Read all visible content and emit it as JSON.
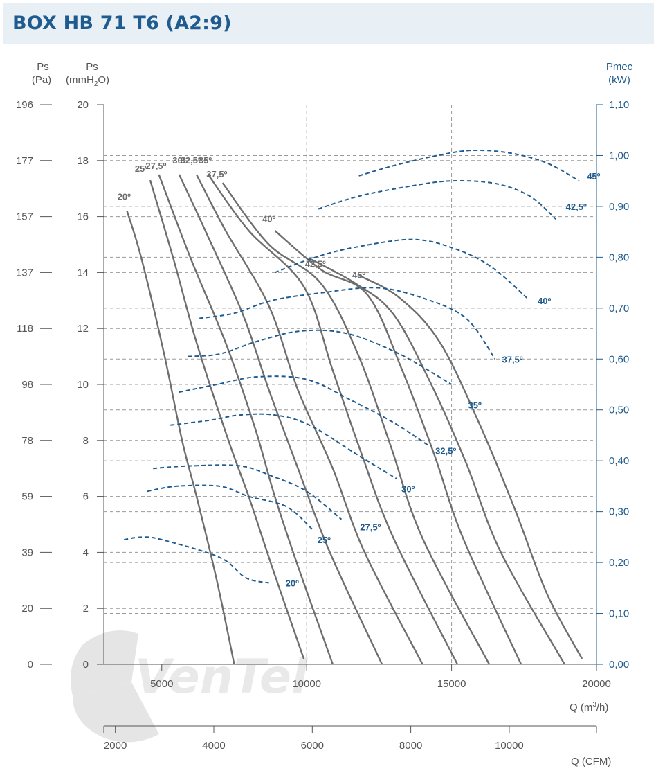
{
  "title": "BOX HB 71 T6 (A2:9)",
  "watermark": "VenTel",
  "axes": {
    "left_pa": {
      "unit_line1": "Ps",
      "unit_line2": "(Pa)",
      "ticks": [
        "196",
        "177",
        "157",
        "137",
        "118",
        "98",
        "78",
        "59",
        "39",
        "20",
        "0"
      ]
    },
    "left_mmh2o": {
      "unit_line1": "Ps",
      "unit_line2": "(mmH",
      "unit_sub": "2",
      "unit_tail": "O)",
      "ticks": [
        "20",
        "18",
        "16",
        "14",
        "12",
        "10",
        "8",
        "6",
        "4",
        "2",
        "0"
      ]
    },
    "right_kw": {
      "unit_line1": "Pmec",
      "unit_line2": "(kW)",
      "ticks": [
        "1,10",
        "1,00",
        "0,90",
        "0,80",
        "0,70",
        "0,60",
        "0,50",
        "0,40",
        "0,30",
        "0,20",
        "0,10",
        "0,00"
      ]
    },
    "x_m3h": {
      "label": "Q (m",
      "label_sup": "3",
      "label_tail": "/h)",
      "ticks": [
        "5000",
        "10000",
        "15000",
        "20000"
      ]
    },
    "x_cfm": {
      "label": "Q (CFM)",
      "ticks": [
        "2000",
        "4000",
        "6000",
        "8000",
        "10000"
      ]
    }
  },
  "colors": {
    "pressure_curve": "#6e6e6e",
    "power_curve": "#1f5b8e",
    "axis_right": "#1f5b8e",
    "title": "#1f5b8e",
    "header_bg": "#e8eff5",
    "grid": "#9a9a9a"
  },
  "chart_data": {
    "type": "line",
    "x_axis": {
      "label": "Q (m3/h)",
      "range": [
        3000,
        20000
      ],
      "secondary_label": "Q (CFM)"
    },
    "y_axis_left": {
      "label": "Ps (mmH2O)",
      "range": [
        0,
        20
      ],
      "secondary_label": "Ps (Pa)"
    },
    "y_axis_right": {
      "label": "Pmec (kW)",
      "range": [
        0,
        1.1
      ]
    },
    "pressure_series": [
      {
        "name": "20º",
        "label_at": [
          3700,
          16.6
        ],
        "points": [
          [
            3800,
            16.2
          ],
          [
            4300,
            14.5
          ],
          [
            5100,
            11.0
          ],
          [
            5700,
            8.0
          ],
          [
            6200,
            6.0
          ],
          [
            6900,
            3.0
          ],
          [
            7500,
            0
          ]
        ]
      },
      {
        "name": "25º",
        "label_at": [
          4300,
          17.6
        ],
        "points": [
          [
            4600,
            17.3
          ],
          [
            5400,
            14.5
          ],
          [
            6200,
            11.5
          ],
          [
            7300,
            8.0
          ],
          [
            8000,
            6.0
          ],
          [
            8800,
            3.5
          ],
          [
            9900,
            0.2
          ]
        ]
      },
      {
        "name": "27,5º",
        "label_at": [
          4800,
          17.7
        ],
        "points": [
          [
            4900,
            17.5
          ],
          [
            6000,
            14.5
          ],
          [
            7200,
            11.5
          ],
          [
            8200,
            8.5
          ],
          [
            8900,
            6.0
          ],
          [
            9700,
            3.5
          ],
          [
            10900,
            0
          ]
        ]
      },
      {
        "name": "30º",
        "label_at": [
          5600,
          17.9
        ],
        "points": [
          [
            5600,
            17.5
          ],
          [
            6500,
            15.5
          ],
          [
            7800,
            12.5
          ],
          [
            8700,
            9.8
          ],
          [
            9700,
            7.0
          ],
          [
            10800,
            4.0
          ],
          [
            12600,
            0
          ]
        ]
      },
      {
        "name": "32,5º",
        "label_at": [
          6000,
          17.9
        ],
        "points": [
          [
            6200,
            17.5
          ],
          [
            7200,
            15.5
          ],
          [
            8700,
            12.8
          ],
          [
            9700,
            9.8
          ],
          [
            10900,
            7.0
          ],
          [
            12000,
            4.0
          ],
          [
            14000,
            0
          ]
        ]
      },
      {
        "name": "35º",
        "label_at": [
          6500,
          17.9
        ],
        "points": [
          [
            6600,
            17.5
          ],
          [
            8000,
            15.5
          ],
          [
            9900,
            13.5
          ],
          [
            10900,
            10.5
          ],
          [
            11900,
            7.5
          ],
          [
            13000,
            4.5
          ],
          [
            15200,
            0
          ]
        ]
      },
      {
        "name": "37,5º",
        "label_at": [
          6900,
          17.4
        ],
        "points": [
          [
            7100,
            17.2
          ],
          [
            8700,
            15.0
          ],
          [
            10500,
            13.6
          ],
          [
            11800,
            11.0
          ],
          [
            12900,
            7.8
          ],
          [
            14000,
            4.5
          ],
          [
            16300,
            0
          ]
        ]
      },
      {
        "name": "40º",
        "label_at": [
          8700,
          15.8
        ],
        "points": [
          [
            8900,
            15.5
          ],
          [
            10500,
            14.1
          ],
          [
            12100,
            13.2
          ],
          [
            13300,
            10.5
          ],
          [
            14400,
            7.5
          ],
          [
            15400,
            4.5
          ],
          [
            17400,
            0
          ]
        ]
      },
      {
        "name": "42,5º",
        "label_at": [
          10300,
          14.2
        ],
        "points": [
          [
            10100,
            14.5
          ],
          [
            11700,
            13.6
          ],
          [
            13000,
            12.5
          ],
          [
            14300,
            10.0
          ],
          [
            15500,
            7.2
          ],
          [
            16700,
            4.0
          ],
          [
            18900,
            0
          ]
        ]
      },
      {
        "name": "45º",
        "label_at": [
          11800,
          13.8
        ],
        "points": [
          [
            11800,
            13.9
          ],
          [
            13200,
            13.1
          ],
          [
            14600,
            11.5
          ],
          [
            16000,
            8.5
          ],
          [
            17200,
            5.5
          ],
          [
            18300,
            2.5
          ],
          [
            19500,
            0.2
          ]
        ]
      }
    ],
    "power_series": [
      {
        "name": "20º",
        "label_at": [
          9500,
          0.16
        ],
        "points": [
          [
            3700,
            0.245
          ],
          [
            4300,
            0.25
          ],
          [
            5000,
            0.245
          ],
          [
            7000,
            0.21
          ],
          [
            7900,
            0.17
          ],
          [
            8700,
            0.16
          ]
        ]
      },
      {
        "name": "25º",
        "label_at": [
          10600,
          0.245
        ],
        "points": [
          [
            4500,
            0.34
          ],
          [
            5500,
            0.35
          ],
          [
            7000,
            0.35
          ],
          [
            8000,
            0.33
          ],
          [
            9300,
            0.31
          ],
          [
            10200,
            0.265
          ]
        ]
      },
      {
        "name": "27,5º",
        "label_at": [
          12200,
          0.27
        ],
        "points": [
          [
            4700,
            0.385
          ],
          [
            6000,
            0.39
          ],
          [
            7700,
            0.39
          ],
          [
            8800,
            0.37
          ],
          [
            10000,
            0.34
          ],
          [
            11200,
            0.285
          ]
        ]
      },
      {
        "name": "30º",
        "label_at": [
          13500,
          0.345
        ],
        "points": [
          [
            5300,
            0.47
          ],
          [
            6700,
            0.48
          ],
          [
            7700,
            0.49
          ],
          [
            8900,
            0.49
          ],
          [
            10100,
            0.47
          ],
          [
            11800,
            0.41
          ],
          [
            13100,
            0.365
          ]
        ]
      },
      {
        "name": "32,5º",
        "label_at": [
          14800,
          0.42
        ],
        "points": [
          [
            5600,
            0.535
          ],
          [
            6900,
            0.55
          ],
          [
            8300,
            0.565
          ],
          [
            10000,
            0.56
          ],
          [
            11500,
            0.52
          ],
          [
            13000,
            0.475
          ],
          [
            14200,
            0.43
          ]
        ]
      },
      {
        "name": "35º",
        "label_at": [
          15800,
          0.51
        ],
        "points": [
          [
            5900,
            0.605
          ],
          [
            7000,
            0.61
          ],
          [
            8300,
            0.635
          ],
          [
            9800,
            0.655
          ],
          [
            11400,
            0.65
          ],
          [
            13200,
            0.61
          ],
          [
            15000,
            0.55
          ]
        ]
      },
      {
        "name": "37,5º",
        "label_at": [
          17100,
          0.6
        ],
        "points": [
          [
            6300,
            0.68
          ],
          [
            7500,
            0.69
          ],
          [
            8800,
            0.715
          ],
          [
            10500,
            0.73
          ],
          [
            12400,
            0.74
          ],
          [
            14000,
            0.72
          ],
          [
            15500,
            0.68
          ],
          [
            16500,
            0.6
          ]
        ]
      },
      {
        "name": "40º",
        "label_at": [
          18200,
          0.715
        ],
        "points": [
          [
            8900,
            0.77
          ],
          [
            10300,
            0.8
          ],
          [
            11700,
            0.82
          ],
          [
            13700,
            0.835
          ],
          [
            15200,
            0.815
          ],
          [
            16400,
            0.78
          ],
          [
            17600,
            0.72
          ]
        ]
      },
      {
        "name": "42,5º",
        "label_at": [
          19300,
          0.9
        ],
        "points": [
          [
            10400,
            0.895
          ],
          [
            11800,
            0.92
          ],
          [
            13600,
            0.94
          ],
          [
            15000,
            0.95
          ],
          [
            16500,
            0.945
          ],
          [
            17700,
            0.92
          ],
          [
            18600,
            0.875
          ]
        ]
      },
      {
        "name": "45º",
        "label_at": [
          19900,
          0.96
        ],
        "points": [
          [
            11800,
            0.96
          ],
          [
            13000,
            0.98
          ],
          [
            14500,
            1.0
          ],
          [
            15700,
            1.01
          ],
          [
            17000,
            1.005
          ],
          [
            18300,
            0.985
          ],
          [
            19400,
            0.95
          ]
        ]
      }
    ]
  }
}
